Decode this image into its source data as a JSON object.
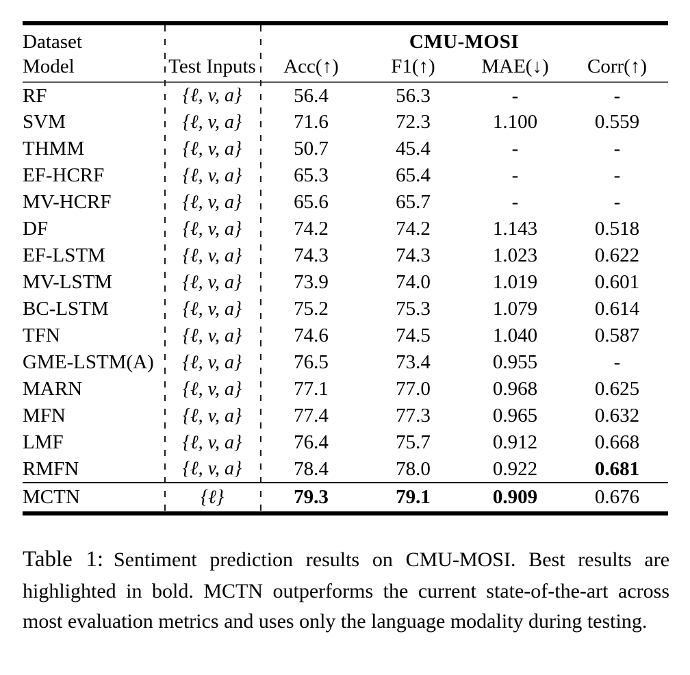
{
  "colors": {
    "text": "#000000",
    "thick_rule": "#000000",
    "thin_rule": "#5a5a5a",
    "background": "#ffffff"
  },
  "table": {
    "group_header": "CMU-MOSI",
    "header": {
      "row1_col1": "Dataset",
      "row2_col1": "Model",
      "row2_col2": "Test Inputs",
      "metrics": [
        "Acc(↑)",
        "F1(↑)",
        "MAE(↓)",
        "Corr(↑)"
      ]
    },
    "rows": [
      {
        "model": "RF",
        "inputs": "{ℓ, v, a}",
        "acc": "56.4",
        "f1": "56.3",
        "mae": "-",
        "corr": "-"
      },
      {
        "model": "SVM",
        "inputs": "{ℓ, v, a}",
        "acc": "71.6",
        "f1": "72.3",
        "mae": "1.100",
        "corr": "0.559"
      },
      {
        "model": "THMM",
        "inputs": "{ℓ, v, a}",
        "acc": "50.7",
        "f1": "45.4",
        "mae": "-",
        "corr": "-"
      },
      {
        "model": "EF-HCRF",
        "inputs": "{ℓ, v, a}",
        "acc": "65.3",
        "f1": "65.4",
        "mae": "-",
        "corr": "-"
      },
      {
        "model": "MV-HCRF",
        "inputs": "{ℓ, v, a}",
        "acc": "65.6",
        "f1": "65.7",
        "mae": "-",
        "corr": "-"
      },
      {
        "model": "DF",
        "inputs": "{ℓ, v, a}",
        "acc": "74.2",
        "f1": "74.2",
        "mae": "1.143",
        "corr": "0.518"
      },
      {
        "model": "EF-LSTM",
        "inputs": "{ℓ, v, a}",
        "acc": "74.3",
        "f1": "74.3",
        "mae": "1.023",
        "corr": "0.622"
      },
      {
        "model": "MV-LSTM",
        "inputs": "{ℓ, v, a}",
        "acc": "73.9",
        "f1": "74.0",
        "mae": "1.019",
        "corr": "0.601"
      },
      {
        "model": "BC-LSTM",
        "inputs": "{ℓ, v, a}",
        "acc": "75.2",
        "f1": "75.3",
        "mae": "1.079",
        "corr": "0.614"
      },
      {
        "model": "TFN",
        "inputs": "{ℓ, v, a}",
        "acc": "74.6",
        "f1": "74.5",
        "mae": "1.040",
        "corr": "0.587"
      },
      {
        "model": "GME-LSTM(A)",
        "inputs": "{ℓ, v, a}",
        "acc": "76.5",
        "f1": "73.4",
        "mae": "0.955",
        "corr": "-"
      },
      {
        "model": "MARN",
        "inputs": "{ℓ, v, a}",
        "acc": "77.1",
        "f1": "77.0",
        "mae": "0.968",
        "corr": "0.625"
      },
      {
        "model": "MFN",
        "inputs": "{ℓ, v, a}",
        "acc": "77.4",
        "f1": "77.3",
        "mae": "0.965",
        "corr": "0.632"
      },
      {
        "model": "LMF",
        "inputs": "{ℓ, v, a}",
        "acc": "76.4",
        "f1": "75.7",
        "mae": "0.912",
        "corr": "0.668"
      },
      {
        "model": "RMFN",
        "inputs": "{ℓ, v, a}",
        "acc": "78.4",
        "f1": "78.0",
        "mae": "0.922",
        "corr": "0.681",
        "bold": [
          "corr"
        ]
      },
      {
        "model": "MCTN",
        "inputs": "{ℓ}",
        "acc": "79.3",
        "f1": "79.1",
        "mae": "0.909",
        "corr": "0.676",
        "bold": [
          "acc",
          "f1",
          "mae"
        ],
        "final": true
      }
    ]
  },
  "caption": {
    "label": "Table 1:",
    "text": "Sentiment prediction results on CMU-MOSI. Best results are highlighted in bold. MCTN outperforms the current state-of-the-art across most evaluation metrics and uses only the language modality during testing."
  }
}
